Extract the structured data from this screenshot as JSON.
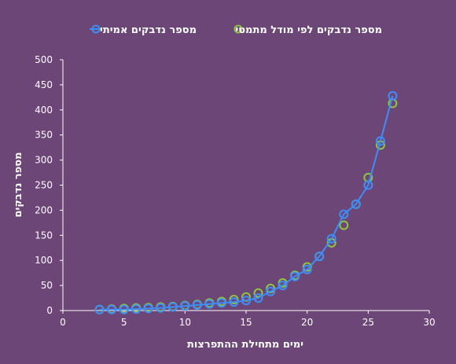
{
  "chart_data": {
    "type": "scatter",
    "xlabel": "ימים מתחילת ההתפרצות",
    "ylabel": "מספר נדבקים",
    "xlim": [
      0,
      30
    ],
    "ylim": [
      0,
      500
    ],
    "xticks": [
      0,
      5,
      10,
      15,
      20,
      25,
      30
    ],
    "yticks": [
      0,
      50,
      100,
      150,
      200,
      250,
      300,
      350,
      400,
      450,
      500
    ],
    "grid": false,
    "legend_position": "top",
    "series": [
      {
        "name": "מספר נדבקים אמיתי",
        "color": "#3e8ef7",
        "marker": "hollow-circle",
        "line": true,
        "x": [
          3,
          4,
          5,
          6,
          7,
          8,
          9,
          10,
          11,
          12,
          13,
          14,
          15,
          16,
          17,
          18,
          19,
          20,
          21,
          22,
          23,
          24,
          25,
          26,
          27
        ],
        "y": [
          2,
          2,
          2,
          3,
          4,
          5,
          7,
          9,
          11,
          13,
          15,
          17,
          20,
          25,
          38,
          50,
          68,
          82,
          108,
          143,
          192,
          212,
          250,
          338,
          428
        ]
      },
      {
        "name": "מספר נדבקים לפי מודל מתמטי",
        "color": "#8dc63f",
        "marker": "hollow-circle",
        "line": false,
        "x": [
          3,
          4,
          5,
          6,
          7,
          8,
          9,
          10,
          11,
          12,
          13,
          14,
          15,
          16,
          17,
          18,
          19,
          20,
          21,
          22,
          23,
          24,
          25,
          26,
          27
        ],
        "y": [
          2,
          3,
          4,
          5,
          6,
          7,
          8,
          10,
          12,
          15,
          18,
          22,
          27,
          35,
          44,
          55,
          70,
          87,
          108,
          135,
          170,
          212,
          265,
          330,
          413
        ]
      }
    ]
  }
}
